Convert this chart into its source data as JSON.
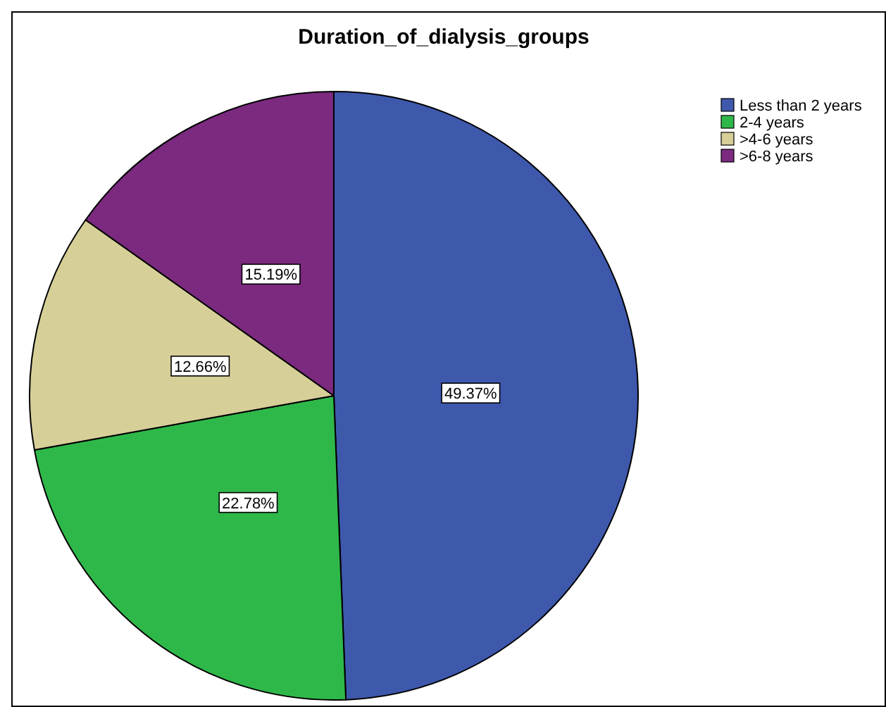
{
  "chart_data": {
    "type": "pie",
    "title": "Duration_of_dialysis_groups",
    "categories": [
      "Less than 2 years",
      "2-4 years",
      ">4-6 years",
      ">6-8 years"
    ],
    "values": [
      49.37,
      22.78,
      12.66,
      15.19
    ],
    "colors": [
      "#3e58ac",
      "#2fb84a",
      "#d6cf98",
      "#7b2a7f"
    ],
    "value_labels": [
      "49.37%",
      "22.78%",
      "12.66%",
      "15.19%"
    ],
    "legend": "top right"
  }
}
